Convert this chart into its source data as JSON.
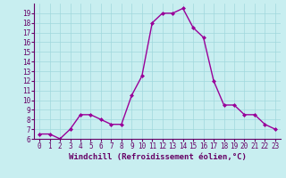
{
  "xlabel": "Windchill (Refroidissement éolien,°C)",
  "x": [
    0,
    1,
    2,
    3,
    4,
    5,
    6,
    7,
    8,
    9,
    10,
    11,
    12,
    13,
    14,
    15,
    16,
    17,
    18,
    19,
    20,
    21,
    22,
    23
  ],
  "y": [
    6.5,
    6.5,
    6.0,
    7.0,
    8.5,
    8.5,
    8.0,
    7.5,
    7.5,
    10.5,
    12.5,
    18.0,
    19.0,
    19.0,
    19.5,
    17.5,
    16.5,
    12.0,
    9.5,
    9.5,
    8.5,
    8.5,
    7.5,
    7.0
  ],
  "line_color": "#990099",
  "marker": "D",
  "marker_size": 2,
  "bg_color": "#c8eef0",
  "grid_color": "#a0d8dc",
  "ylim": [
    6,
    20
  ],
  "xlim": [
    -0.5,
    23.5
  ],
  "yticks": [
    6,
    7,
    8,
    9,
    10,
    11,
    12,
    13,
    14,
    15,
    16,
    17,
    18,
    19
  ],
  "xticks": [
    0,
    1,
    2,
    3,
    4,
    5,
    6,
    7,
    8,
    9,
    10,
    11,
    12,
    13,
    14,
    15,
    16,
    17,
    18,
    19,
    20,
    21,
    22,
    23
  ],
  "tick_fontsize": 5.5,
  "xlabel_fontsize": 6.5,
  "axis_color": "#660066",
  "spine_color": "#660066",
  "linewidth": 1.0
}
